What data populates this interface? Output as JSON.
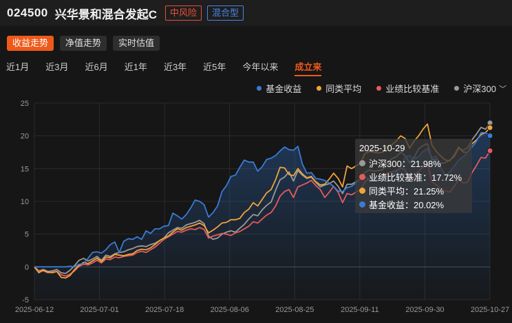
{
  "header": {
    "fund_code": "024500",
    "fund_name": "兴华景和混合发起C",
    "risk_tag": "中风险",
    "type_tag": "混合型"
  },
  "tabs": [
    {
      "label": "收益走势",
      "active": true
    },
    {
      "label": "净值走势",
      "active": false
    },
    {
      "label": "实时估值",
      "active": false
    }
  ],
  "periods": [
    {
      "label": "近1月",
      "active": false
    },
    {
      "label": "近3月",
      "active": false
    },
    {
      "label": "近6月",
      "active": false
    },
    {
      "label": "近1年",
      "active": false
    },
    {
      "label": "近3年",
      "active": false
    },
    {
      "label": "近5年",
      "active": false
    },
    {
      "label": "今年以来",
      "active": false
    },
    {
      "label": "成立来",
      "active": true
    }
  ],
  "legend": [
    {
      "label": "基金收益",
      "color": "#3a7bd5"
    },
    {
      "label": "同类平均",
      "color": "#f2a33a"
    },
    {
      "label": "业绩比较基准",
      "color": "#e85a5a"
    },
    {
      "label": "沪深300",
      "color": "#9a9a9a",
      "dropdown": true
    }
  ],
  "tooltip": {
    "date": "2025-10-29",
    "rows": [
      {
        "label": "沪深300：21.98%",
        "color": "#9a9a9a"
      },
      {
        "label": "业绩比较基准：17.72%",
        "color": "#e85a5a"
      },
      {
        "label": "同类平均：21.25%",
        "color": "#f2a33a"
      },
      {
        "label": "基金收益：20.02%",
        "color": "#3a7bd5"
      }
    ]
  },
  "chart_data": {
    "type": "line",
    "ylim": [
      -5,
      25
    ],
    "yticks": [
      -5,
      0,
      5,
      10,
      15,
      20,
      25
    ],
    "xlabels": [
      "2025-06-12",
      "2025-07-01",
      "2025-07-18",
      "2025-08-06",
      "2025-08-25",
      "2025-09-11",
      "2025-09-30",
      "2025-10-27"
    ],
    "grid": true,
    "legend_position": "top-right",
    "series": [
      {
        "name": "基金收益",
        "color": "#3a7bd5",
        "area": true,
        "values": [
          0,
          0,
          0,
          0,
          0,
          0,
          0,
          0,
          0.1,
          0,
          0.4,
          0.5,
          1.3,
          2.2,
          2.3,
          2.1,
          2.6,
          3.4,
          3.8,
          2.2,
          3.9,
          4.3,
          4.2,
          4.6,
          4.2,
          5.5,
          5.1,
          5.8,
          5.8,
          6.2,
          6.3,
          8.2,
          7.8,
          7.3,
          8.0,
          9.0,
          10.2,
          10.0,
          9.5,
          7.6,
          8.3,
          9.3,
          11.5,
          12.4,
          13.8,
          14.0,
          15.2,
          16.3,
          16.0,
          16.0,
          14.6,
          15.3,
          16.4,
          16.6,
          17.0,
          17.7,
          18.3,
          17.9,
          17.8,
          18.4,
          15.7,
          14.3,
          14.4,
          13.5,
          13.4,
          13.2,
          12.8,
          12.3,
          11.6,
          11.5,
          12.1,
          12.3,
          12.8,
          13.4,
          13.7,
          13.5,
          13.2,
          13.3,
          13.4,
          13.8,
          14.0,
          14.5,
          15.0,
          16.8,
          17.0,
          16.5,
          16.8,
          17.6,
          18.0,
          16.7,
          16.9,
          15.2,
          14.0,
          14.5,
          15.4,
          16.3,
          16.8,
          17.5,
          18.3,
          19.2,
          20.5,
          20.5,
          20.02
        ]
      },
      {
        "name": "同类平均",
        "color": "#f2a33a",
        "area": false,
        "values": [
          0,
          -0.9,
          -0.5,
          -0.8,
          -0.9,
          -0.7,
          -1.6,
          -1.7,
          -1.3,
          -0.4,
          0.2,
          0.7,
          0.5,
          0.9,
          1.3,
          0.8,
          1.5,
          1.4,
          1.9,
          1.8,
          1.7,
          1.9,
          2.0,
          2.5,
          2.7,
          2.6,
          2.9,
          3.4,
          4.0,
          4.4,
          4.7,
          5.3,
          5.8,
          5.6,
          6.0,
          6.2,
          6.4,
          6.7,
          6.3,
          5.2,
          5.6,
          6.1,
          6.7,
          6.8,
          7.2,
          7.2,
          7.4,
          8.3,
          8.8,
          9.8,
          9.3,
          10.3,
          11.3,
          11.8,
          13.3,
          15.2,
          15.1,
          14.1,
          13.9,
          15.0,
          14.2,
          13.6,
          13.8,
          13.0,
          12.5,
          12.6,
          13.4,
          14.3,
          13.5,
          12.2,
          15.4,
          15.0,
          15.4,
          15.8,
          17.3,
          17.6,
          17.5,
          17.4,
          17.5,
          18.4,
          18.6,
          19.2,
          20.0,
          19.6,
          18.1,
          19.2,
          20.0,
          21.0,
          21.8,
          18.6,
          17.6,
          16.9,
          16.3,
          16.2,
          17.1,
          18.3,
          17.5,
          17.5,
          18.8,
          19.4,
          20.2,
          20.5,
          21.25
        ]
      },
      {
        "name": "业绩比较基准",
        "color": "#e85a5a",
        "area": false,
        "values": [
          0,
          -0.7,
          -0.6,
          -0.9,
          -0.8,
          -0.7,
          -1.2,
          -1.4,
          -1.1,
          -0.6,
          0.1,
          0.4,
          0.3,
          0.6,
          1.0,
          0.6,
          1.2,
          1.1,
          1.5,
          1.4,
          1.6,
          1.7,
          1.8,
          2.2,
          2.4,
          2.2,
          2.6,
          3.0,
          3.6,
          4.2,
          4.6,
          5.0,
          5.4,
          5.3,
          5.6,
          5.8,
          5.7,
          6.0,
          5.7,
          4.4,
          4.7,
          4.9,
          5.1,
          5.0,
          4.8,
          5.2,
          5.4,
          5.8,
          6.2,
          6.9,
          6.7,
          7.3,
          7.9,
          8.3,
          9.3,
          10.8,
          11.5,
          11.8,
          10.6,
          12.2,
          12.5,
          12.8,
          13.2,
          12.4,
          11.8,
          10.6,
          11.4,
          12.3,
          11.4,
          9.8,
          11.2,
          11.0,
          11.4,
          11.8,
          13.0,
          13.5,
          13.3,
          13.2,
          13.4,
          14.3,
          14.5,
          14.7,
          15.1,
          14.8,
          13.4,
          13.7,
          14.6,
          15.2,
          15.8,
          13.0,
          12.5,
          11.9,
          11.6,
          11.4,
          12.3,
          13.3,
          12.8,
          12.9,
          14.4,
          15.5,
          16.7,
          16.6,
          17.72
        ]
      },
      {
        "name": "沪深300",
        "color": "#9a9a9a",
        "area": false,
        "values": [
          0,
          -0.6,
          -0.4,
          -0.7,
          -0.6,
          -0.4,
          -0.9,
          -1.0,
          -0.5,
          0.2,
          1.0,
          1.3,
          0.9,
          1.2,
          1.6,
          1.0,
          1.8,
          1.6,
          2.0,
          2.2,
          2.3,
          2.6,
          2.8,
          3.1,
          3.2,
          3.1,
          3.4,
          3.6,
          4.0,
          4.4,
          5.2,
          5.6,
          6.0,
          5.9,
          6.4,
          6.6,
          6.8,
          7.1,
          6.6,
          4.7,
          4.2,
          4.4,
          5.0,
          5.3,
          5.5,
          5.3,
          5.9,
          6.5,
          7.3,
          8.0,
          7.8,
          8.7,
          9.4,
          9.9,
          11.7,
          13.3,
          13.7,
          14.5,
          13.1,
          14.7,
          14.0,
          13.5,
          13.7,
          12.9,
          12.2,
          12.5,
          12.7,
          13.1,
          12.3,
          11.2,
          12.6,
          12.6,
          13.0,
          13.4,
          14.4,
          14.8,
          14.6,
          14.7,
          14.8,
          15.8,
          16.5,
          16.8,
          17.5,
          17.0,
          15.9,
          16.7,
          18.0,
          18.5,
          18.8,
          16.4,
          16.4,
          15.8,
          15.9,
          16.3,
          16.8,
          18.1,
          17.8,
          18.2,
          19.4,
          20.3,
          21.3,
          21.0,
          21.98
        ]
      }
    ]
  }
}
